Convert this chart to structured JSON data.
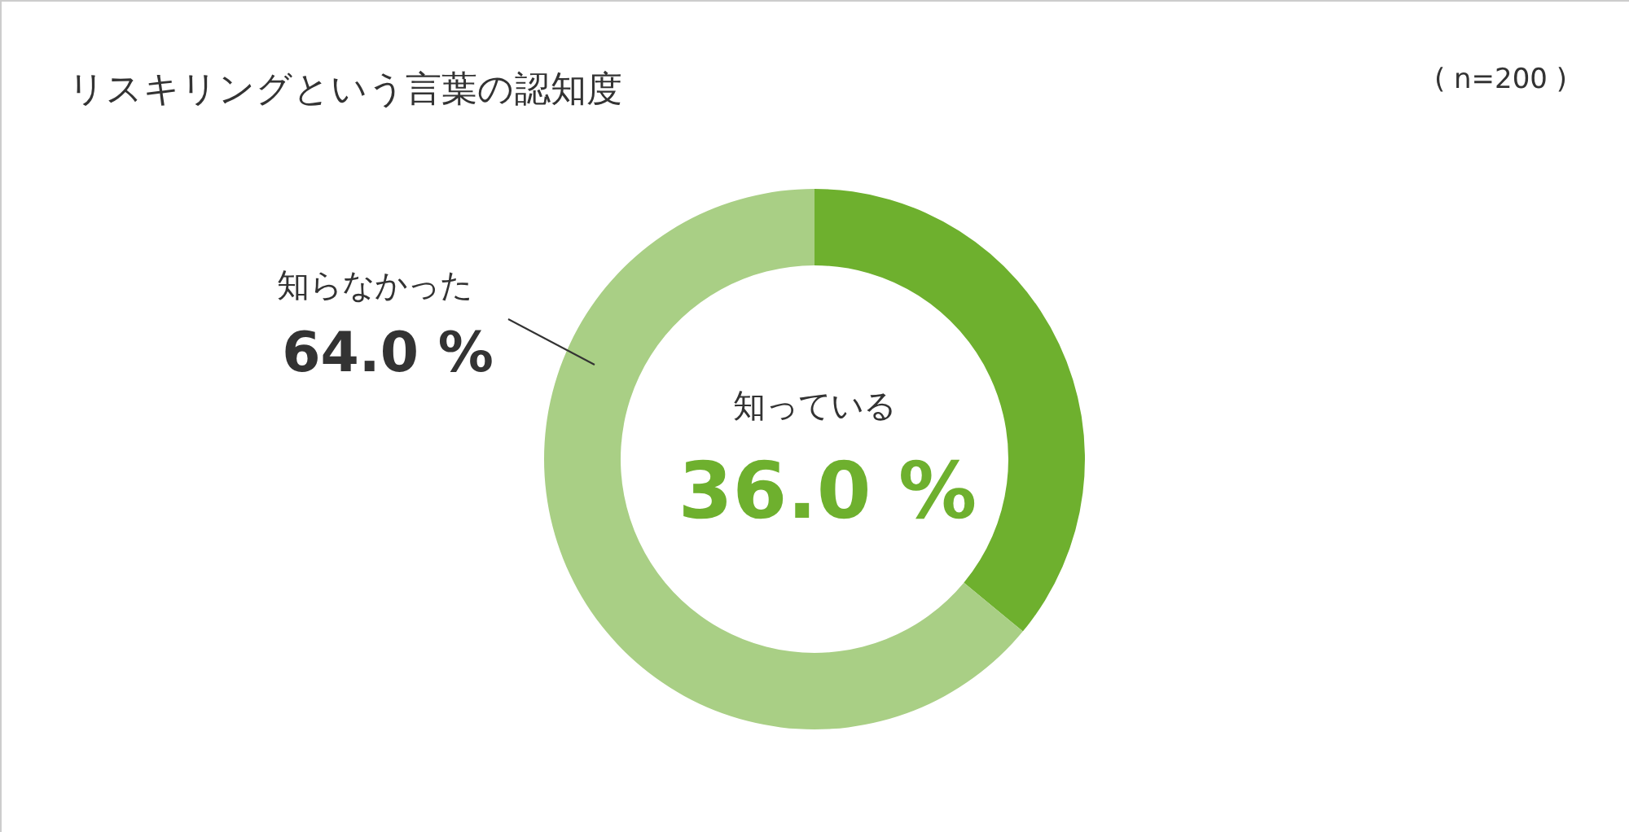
{
  "chart_data": {
    "type": "donut",
    "title": "リスキリングという言葉の認知度",
    "annotations": [
      "( n=200 )"
    ],
    "categories": [
      "知っている",
      "知らなかった"
    ],
    "values": [
      36.0,
      64.0
    ],
    "value_labels": [
      "36.0 %",
      "64.0 %"
    ],
    "colors": [
      "#6eb02e",
      "#a9cf85"
    ]
  }
}
